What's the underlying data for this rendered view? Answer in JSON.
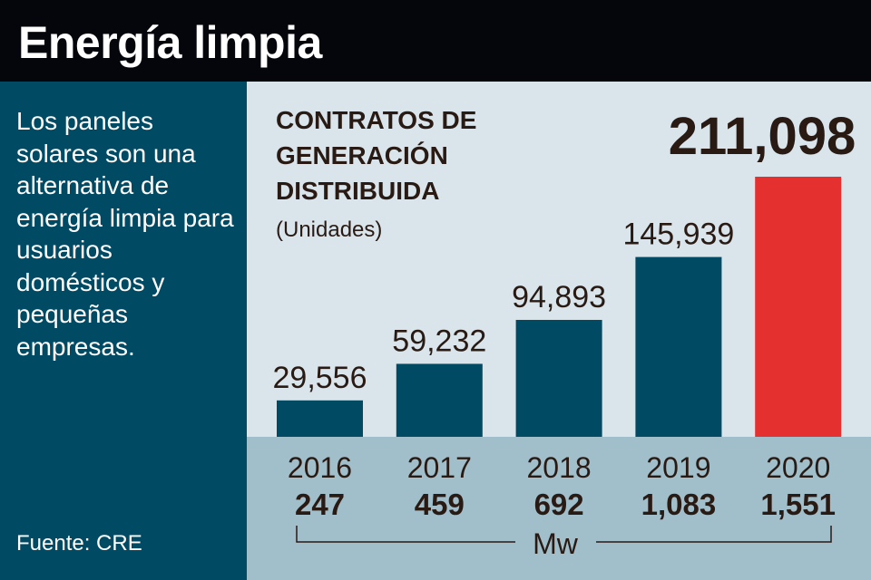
{
  "header": {
    "title": "Energía limpia"
  },
  "sidebar": {
    "description": "Los paneles solares son una alternativa de energía limpia para usuarios domésticos y pequeñas empresas.",
    "source": "Fuente: CRE"
  },
  "chart_data": {
    "type": "bar",
    "title": "CONTRATOS DE GENERACIÓN DISTRIBUIDA",
    "subtitle": "(Unidades)",
    "categories": [
      "2016",
      "2017",
      "2018",
      "2019",
      "2020"
    ],
    "values": [
      29556,
      59232,
      94893,
      145939,
      211098
    ],
    "value_labels": [
      "29,556",
      "59,232",
      "94,893",
      "145,939",
      "211,098"
    ],
    "secondary": {
      "label": "Mw",
      "values": [
        "247",
        "459",
        "692",
        "1,083",
        "1,551"
      ]
    },
    "colors": {
      "bar": "#004a63",
      "highlight": "#e53030",
      "background": "#d9e5eb",
      "band": "#a0bfcb"
    },
    "highlight_index": 4,
    "ylim": [
      0,
      211098
    ],
    "grid": false
  }
}
